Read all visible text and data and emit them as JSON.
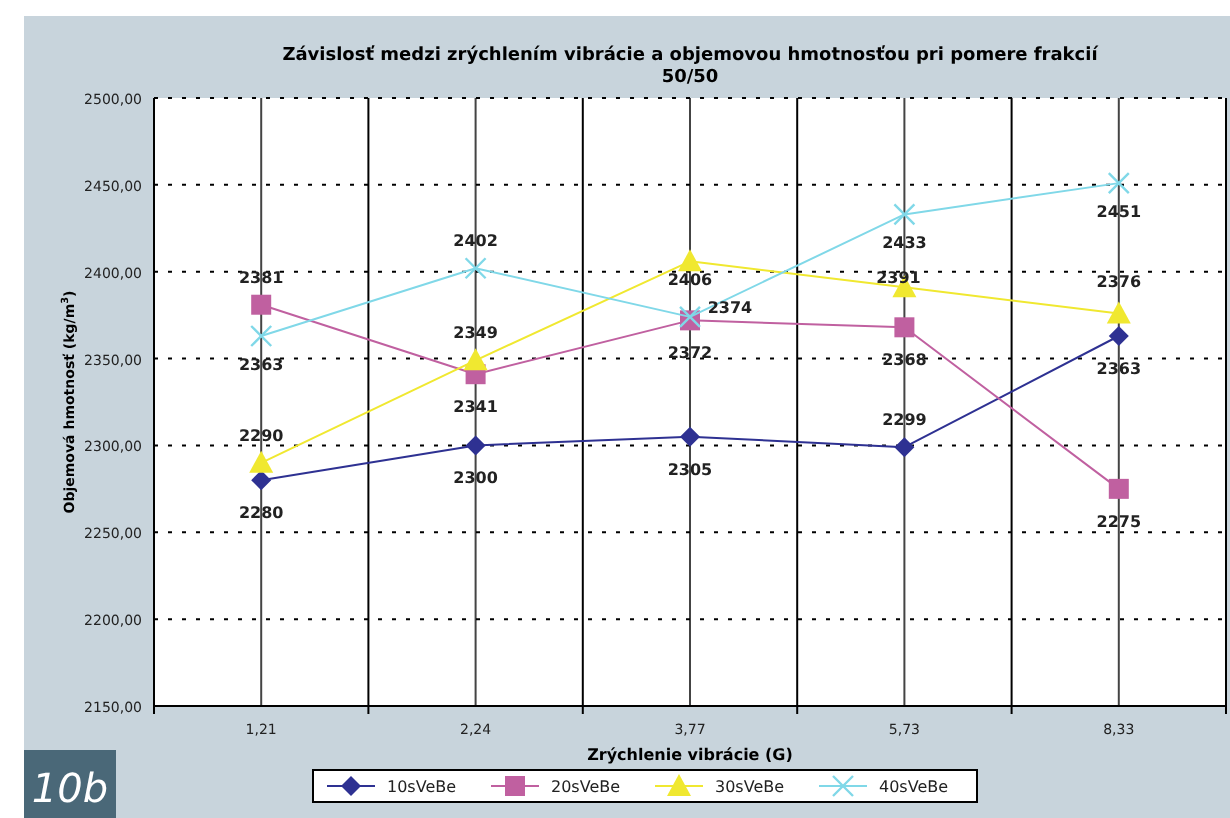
{
  "chart_data": {
    "type": "line",
    "title": "Závislosť medzi zrýchlením vibrácie a objemovou hmotnosťou pri pomere frakcií 50/50",
    "xlabel": "Zrýchlenie vibrácie (G)",
    "ylabel": "Objemová hmotnosť (kg/m$^{3}$)",
    "categories": [
      "1,21",
      "2,24",
      "3,77",
      "5,73",
      "8,33"
    ],
    "ylim": [
      2150,
      2500
    ],
    "yticks": [
      {
        "value": 2150,
        "label": "2150,00"
      },
      {
        "value": 2200,
        "label": "2200,00"
      },
      {
        "value": 2250,
        "label": "2250,00"
      },
      {
        "value": 2300,
        "label": "2300,00"
      },
      {
        "value": 2350,
        "label": "2350,00"
      },
      {
        "value": 2400,
        "label": "2400,00"
      },
      {
        "value": 2450,
        "label": "2450,00"
      },
      {
        "value": 2500,
        "label": "2500,00"
      }
    ],
    "grid": true,
    "legend": "bottom",
    "data_labels": true,
    "series": [
      {
        "name": "10sVeBe",
        "color": "#2e3192",
        "marker": "diamond",
        "values": [
          2280,
          2300,
          2305,
          2299,
          2363
        ]
      },
      {
        "name": "20sVeBe",
        "color": "#c060a0",
        "marker": "square",
        "values": [
          2381,
          2341,
          2372,
          2368,
          2275
        ]
      },
      {
        "name": "30sVeBe",
        "color": "#f0e830",
        "marker": "triangle",
        "values": [
          2290,
          2349,
          2406,
          2391,
          2376
        ]
      },
      {
        "name": "40sVeBe",
        "color": "#80d8e8",
        "marker": "cross",
        "values": [
          2363,
          2402,
          2374,
          2433,
          2451
        ]
      }
    ],
    "annotations": [
      "10b"
    ]
  }
}
